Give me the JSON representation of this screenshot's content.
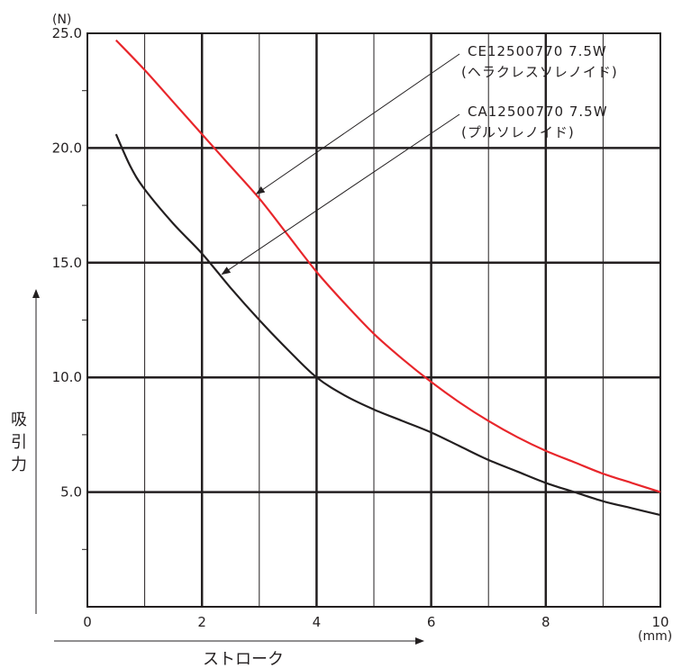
{
  "chart_data": {
    "type": "line",
    "title": "",
    "x_unit": "(mm)",
    "y_unit": "(N)",
    "xlabel": "ストローク",
    "ylabel": "吸引力",
    "xlim": [
      0,
      10
    ],
    "ylim": [
      0,
      25
    ],
    "x_ticks": [
      "0",
      "2",
      "4",
      "6",
      "8",
      "10"
    ],
    "y_ticks": [
      "5.0",
      "10.0",
      "15.0",
      "20.0",
      "25.0"
    ],
    "grid": true,
    "series": [
      {
        "color": "#e8262b",
        "x": [
          0.5,
          1,
          1.5,
          2,
          2.5,
          3,
          3.5,
          4,
          4.5,
          5,
          5.5,
          6,
          6.5,
          7,
          7.5,
          8,
          8.5,
          9,
          9.5,
          10
        ],
        "y": [
          24.7,
          23.4,
          22.0,
          20.6,
          19.2,
          17.8,
          16.2,
          14.6,
          13.2,
          11.9,
          10.8,
          9.8,
          8.9,
          8.1,
          7.4,
          6.8,
          6.3,
          5.8,
          5.4,
          5.0
        ]
      },
      {
        "color": "#231f20",
        "x": [
          0.5,
          0.75,
          1,
          1.5,
          2,
          2.5,
          3,
          3.5,
          4,
          4.5,
          5,
          5.5,
          6,
          6.5,
          7,
          7.5,
          8,
          8.5,
          9,
          9.5,
          10
        ],
        "y": [
          20.6,
          19.2,
          18.2,
          16.7,
          15.4,
          13.9,
          12.5,
          11.2,
          10.0,
          9.2,
          8.6,
          8.1,
          7.6,
          7.0,
          6.4,
          5.9,
          5.4,
          5.0,
          4.6,
          4.3,
          4.0
        ]
      }
    ],
    "annotations": [
      {
        "line1": "CE12500770  7.5W",
        "line2": "(ヘラクレスソレノイド)",
        "target_x": 2.95,
        "target_y": 18.0
      },
      {
        "line1": "CA12500770  7.5W",
        "line2": "(プルソレノイド)",
        "target_x": 2.35,
        "target_y": 14.5
      }
    ]
  }
}
